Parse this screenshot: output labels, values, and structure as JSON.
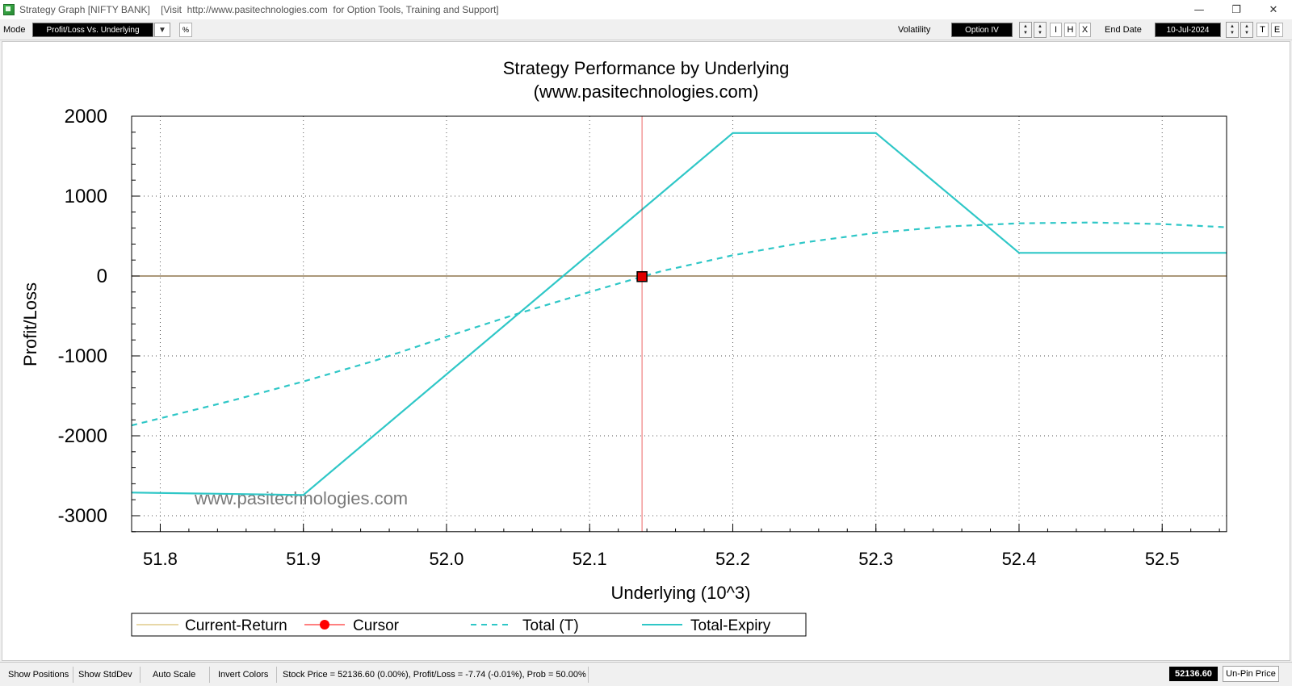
{
  "window": {
    "title": "Strategy Graph [NIFTY BANK]    [Visit  http://www.pasitechnologies.com  for Option Tools, Training and Support]",
    "controls": {
      "minimize": "—",
      "restore": "❐",
      "close": "✕"
    }
  },
  "toolbar": {
    "mode_label": "Mode",
    "mode_value": "Profit/Loss Vs. Underlying",
    "percent_button": "%",
    "volatility_label": "Volatility",
    "volatility_value": "Option IV",
    "i_button": "I",
    "h_button": "H",
    "x_button": "X",
    "end_date_label": "End Date",
    "end_date_value": "10-Jul-2024",
    "t_button": "T",
    "e_button": "E"
  },
  "chart_data": {
    "type": "line",
    "title": "Strategy Performance by Underlying",
    "subtitle": "(www.pasitechnologies.com)",
    "xlabel": "Underlying (10^3)",
    "ylabel": "Profit/Loss",
    "watermark": "www.pasitechnologies.com",
    "xlim": [
      51.78,
      52.545
    ],
    "ylim": [
      -3200,
      2000
    ],
    "x_ticks": [
      51.8,
      51.9,
      52.0,
      52.1,
      52.2,
      52.3,
      52.4,
      52.5
    ],
    "x_tick_labels": [
      "51.8",
      "51.9",
      "52.0",
      "52.1",
      "52.2",
      "52.3",
      "52.4",
      "52.5"
    ],
    "y_ticks": [
      2000,
      1000,
      0,
      -1000,
      -2000,
      -3000
    ],
    "y_tick_labels": [
      "2000",
      "1000",
      "0",
      "-1000",
      "-2000",
      "-3000"
    ],
    "grid": true,
    "zero_line_color": "#7a5a2a",
    "cursor": {
      "x": 52.1366,
      "y": -7.74,
      "color": "#e00000"
    },
    "series": [
      {
        "name": "Total (T)",
        "style": "dashed",
        "color": "#2fc7c7",
        "x": [
          51.78,
          51.85,
          51.9,
          51.95,
          52.0,
          52.05,
          52.1,
          52.1366,
          52.15,
          52.2,
          52.25,
          52.3,
          52.35,
          52.4,
          52.45,
          52.5,
          52.545
        ],
        "y": [
          -1870,
          -1560,
          -1320,
          -1060,
          -760,
          -470,
          -200,
          -8,
          60,
          260,
          420,
          540,
          620,
          660,
          670,
          650,
          610
        ]
      },
      {
        "name": "Total-Expiry",
        "style": "solid",
        "color": "#2fc7c7",
        "x": [
          51.78,
          51.9,
          52.2,
          52.3,
          52.4,
          52.545
        ],
        "y": [
          -2710,
          -2740,
          1790,
          1790,
          290,
          290
        ]
      }
    ],
    "legend": {
      "placement": "bottom",
      "items": [
        {
          "label": "Current-Return",
          "kind": "line",
          "color": "#e8d8a8"
        },
        {
          "label": "Cursor",
          "kind": "marker",
          "color": "#ff0000"
        },
        {
          "label": "Total (T)",
          "kind": "dashed",
          "color": "#2fc7c7"
        },
        {
          "label": "Total-Expiry",
          "kind": "solid",
          "color": "#2fc7c7"
        }
      ]
    }
  },
  "statusbar": {
    "show_positions": "Show Positions",
    "show_stddev": "Show StdDev",
    "auto_scale": "Auto Scale",
    "invert_colors": "Invert Colors",
    "status_text": "Stock Price = 52136.60 (0.00%), Profit/Loss = -7.74 (-0.01%), Prob = 50.00%",
    "price_value": "52136.60",
    "unpin_price": "Un-Pin Price"
  }
}
